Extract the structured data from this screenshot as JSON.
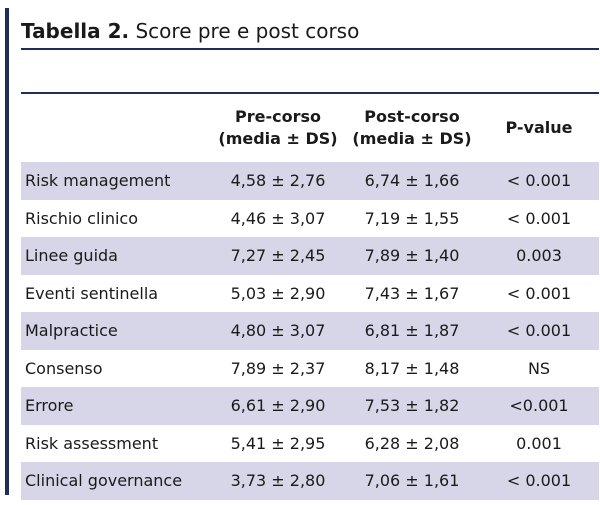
{
  "title": {
    "label": "Tabella 2.",
    "text": "Score pre e post corso"
  },
  "table": {
    "headers": [
      {
        "line1": "",
        "line2": ""
      },
      {
        "line1": "Pre-corso",
        "line2": "(media ± DS)"
      },
      {
        "line1": "Post-corso",
        "line2": "(media ± DS)"
      },
      {
        "line1": "P-value",
        "line2": ""
      }
    ],
    "rows": [
      {
        "name": "Risk management",
        "pre": "4,58 ± 2,76",
        "post": "6,74 ± 1,66",
        "p": "< 0.001"
      },
      {
        "name": "Rischio clinico",
        "pre": "4,46 ± 3,07",
        "post": "7,19 ± 1,55",
        "p": "< 0.001"
      },
      {
        "name": "Linee guida",
        "pre": "7,27 ± 2,45",
        "post": "7,89 ± 1,40",
        "p": "0.003"
      },
      {
        "name": "Eventi sentinella",
        "pre": "5,03 ± 2,90",
        "post": "7,43 ± 1,67",
        "p": "< 0.001"
      },
      {
        "name": "Malpractice",
        "pre": "4,80 ± 3,07",
        "post": "6,81 ± 1,87",
        "p": "< 0.001"
      },
      {
        "name": "Consenso",
        "pre": "7,89 ± 2,37",
        "post": "8,17 ± 1,48",
        "p": "NS"
      },
      {
        "name": "Errore",
        "pre": "6,61 ± 2,90",
        "post": "7,53 ± 1,82",
        "p": "<0.001"
      },
      {
        "name": "Risk assessment",
        "pre": "5,41 ± 2,95",
        "post": "6,28 ± 2,08",
        "p": "0.001"
      },
      {
        "name": "Clinical governance",
        "pre": "3,73 ± 2,80",
        "post": "7,06 ± 1,61",
        "p": "< 0.001"
      }
    ]
  },
  "colors": {
    "accent": "#1f2f5c",
    "row_shade": "#d6d6e8"
  }
}
